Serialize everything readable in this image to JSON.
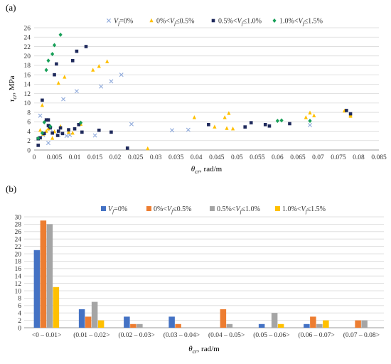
{
  "figure": {
    "panel_a": "(a)",
    "panel_b": "(b)"
  },
  "chart_data": [
    {
      "type": "scatter",
      "title": "",
      "xlabel": "θcr, rad/m",
      "ylabel": "τcr, MPa",
      "xlim": [
        0,
        0.085
      ],
      "ylim": [
        0,
        26
      ],
      "x_ticks": [
        "0",
        "0.005",
        "0.01",
        "0.015",
        "0.02",
        "0.025",
        "0.03",
        "0.035",
        "0.04",
        "0.045",
        "0.05",
        "0.055",
        "0.06",
        "0.065",
        "0.07",
        "0.075",
        "0.08",
        "0.085"
      ],
      "y_ticks": [
        "0",
        "2",
        "4",
        "6",
        "8",
        "10",
        "12",
        "14",
        "16",
        "18",
        "20",
        "22",
        "24",
        "26"
      ],
      "grid": true,
      "legend_position": "top",
      "series": [
        {
          "name": "Vf=0%",
          "marker": "x",
          "color": "#8ea9db",
          "points": [
            [
              0.0015,
              7.3
            ],
            [
              0.0022,
              3.2
            ],
            [
              0.0035,
              1.5
            ],
            [
              0.004,
              4.5
            ],
            [
              0.006,
              3.2
            ],
            [
              0.0072,
              10.8
            ],
            [
              0.008,
              3.0
            ],
            [
              0.0088,
              3.2
            ],
            [
              0.0105,
              12.5
            ],
            [
              0.015,
              3.1
            ],
            [
              0.0165,
              13.5
            ],
            [
              0.019,
              14.6
            ],
            [
              0.0215,
              16.0
            ],
            [
              0.024,
              5.5
            ],
            [
              0.034,
              4.2
            ],
            [
              0.038,
              4.3
            ],
            [
              0.068,
              5.3
            ]
          ]
        },
        {
          "name": "0%<Vf≤0.5%",
          "marker": "triangle",
          "color": "#ffc000",
          "points": [
            [
              0.0015,
              4.2
            ],
            [
              0.002,
              9.5
            ],
            [
              0.0022,
              3.4
            ],
            [
              0.003,
              4.0
            ],
            [
              0.0035,
              4.5
            ],
            [
              0.0045,
              2.5
            ],
            [
              0.005,
              3.9
            ],
            [
              0.006,
              14.2
            ],
            [
              0.0065,
              5.0
            ],
            [
              0.0075,
              15.5
            ],
            [
              0.0085,
              3.8
            ],
            [
              0.0095,
              3.6
            ],
            [
              0.0115,
              5.5
            ],
            [
              0.0145,
              17.0
            ],
            [
              0.016,
              17.8
            ],
            [
              0.018,
              18.8
            ],
            [
              0.028,
              0.3
            ],
            [
              0.0395,
              6.9
            ],
            [
              0.0445,
              4.9
            ],
            [
              0.047,
              6.9
            ],
            [
              0.048,
              7.8
            ],
            [
              0.0475,
              4.6
            ],
            [
              0.049,
              4.5
            ],
            [
              0.067,
              6.9
            ],
            [
              0.068,
              7.9
            ],
            [
              0.069,
              7.3
            ],
            [
              0.0765,
              8.3
            ],
            [
              0.078,
              7.5
            ],
            [
              0.078,
              7.2
            ]
          ]
        },
        {
          "name": "0.5%<Vf≤1.0%",
          "marker": "square",
          "color": "#1f2a5c",
          "points": [
            [
              0.001,
              1.0
            ],
            [
              0.001,
              2.4
            ],
            [
              0.0015,
              2.6
            ],
            [
              0.002,
              10.6
            ],
            [
              0.0025,
              3.5
            ],
            [
              0.003,
              6.4
            ],
            [
              0.0035,
              6.4
            ],
            [
              0.0035,
              5.2
            ],
            [
              0.0038,
              5.0
            ],
            [
              0.004,
              4.8
            ],
            [
              0.0045,
              3.6
            ],
            [
              0.005,
              16.0
            ],
            [
              0.0055,
              18.3
            ],
            [
              0.0058,
              3.1
            ],
            [
              0.006,
              4.0
            ],
            [
              0.0065,
              4.7
            ],
            [
              0.007,
              3.5
            ],
            [
              0.0085,
              4.3
            ],
            [
              0.0095,
              19.0
            ],
            [
              0.01,
              4.5
            ],
            [
              0.0105,
              21.0
            ],
            [
              0.011,
              5.4
            ],
            [
              0.0118,
              3.8
            ],
            [
              0.0128,
              22.0
            ],
            [
              0.016,
              4.2
            ],
            [
              0.019,
              3.8
            ],
            [
              0.023,
              0.4
            ],
            [
              0.043,
              5.4
            ],
            [
              0.052,
              4.9
            ],
            [
              0.0535,
              5.8
            ],
            [
              0.057,
              5.4
            ],
            [
              0.058,
              5.1
            ],
            [
              0.063,
              5.6
            ],
            [
              0.077,
              8.4
            ],
            [
              0.078,
              7.7
            ]
          ]
        },
        {
          "name": "1.0%<Vf≤1.5%",
          "marker": "diamond",
          "color": "#18a058",
          "points": [
            [
              0.001,
              2.5
            ],
            [
              0.002,
              3.6
            ],
            [
              0.0025,
              5.9
            ],
            [
              0.003,
              17.0
            ],
            [
              0.0035,
              19.0
            ],
            [
              0.004,
              5.0
            ],
            [
              0.0045,
              20.4
            ],
            [
              0.005,
              22.3
            ],
            [
              0.0065,
              24.5
            ],
            [
              0.0115,
              5.8
            ],
            [
              0.06,
              6.2
            ],
            [
              0.061,
              6.3
            ],
            [
              0.068,
              6.2
            ]
          ]
        }
      ]
    },
    {
      "type": "bar",
      "title": "",
      "xlabel": "θcr, rad/m",
      "ylabel": "",
      "ylim": [
        0,
        30
      ],
      "y_ticks": [
        "0",
        "2",
        "4",
        "6",
        "8",
        "10",
        "12",
        "14",
        "16",
        "18",
        "20",
        "22",
        "24",
        "26",
        "28",
        "30"
      ],
      "grid": true,
      "legend_position": "top",
      "categories": [
        "<0 – 0.01>",
        "(0.01 – 0.02>",
        "(0.02 – 0.03>",
        "(0.03 – 0.04>",
        "(0.04 – 0.05>",
        "(0.05 – 0.06>",
        "(0.06 – 0.07>",
        "(0.07 – 0.08>"
      ],
      "series": [
        {
          "name": "Vf=0%",
          "color": "#4472c4",
          "values": [
            21,
            5,
            3,
            3,
            0,
            1,
            1,
            0
          ]
        },
        {
          "name": "0%<Vf≤0.5%",
          "color": "#ed7d31",
          "values": [
            29,
            3,
            1,
            1,
            5,
            0,
            3,
            2
          ]
        },
        {
          "name": "0.5%<Vf≤1.0%",
          "color": "#a5a5a5",
          "values": [
            28,
            7,
            1,
            0,
            1,
            4,
            1,
            2
          ]
        },
        {
          "name": "1.0%<Vf≤1.5%",
          "color": "#ffc000",
          "values": [
            11,
            2,
            0,
            0,
            0,
            1,
            2,
            0
          ]
        }
      ]
    }
  ]
}
